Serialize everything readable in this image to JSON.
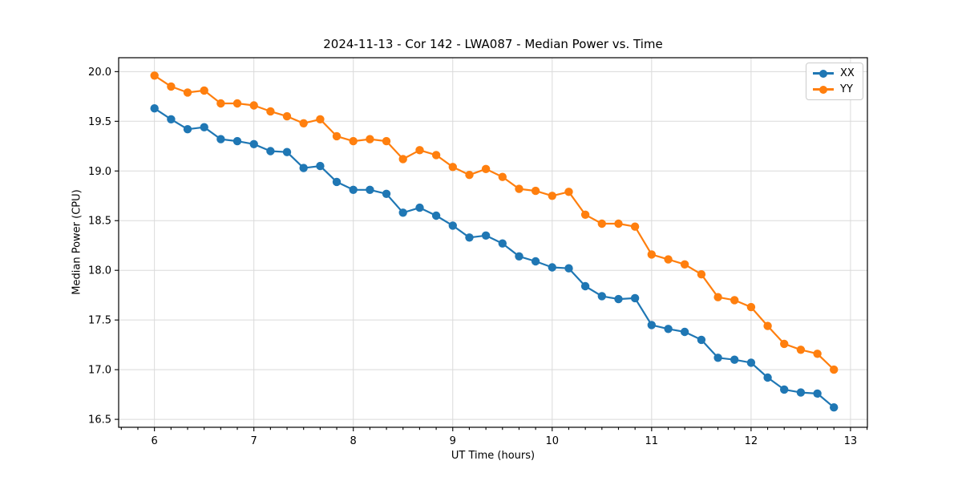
{
  "figure": {
    "title": "2024-11-13 - Cor 142 - LWA087 - Median Power vs. Time",
    "xlabel": "UT Time (hours)",
    "ylabel": "Median Power (CPU)"
  },
  "legend": {
    "entries": [
      {
        "label": "XX",
        "color": "#1f77b4"
      },
      {
        "label": "YY",
        "color": "#ff7f0e"
      }
    ]
  },
  "chart_data": {
    "type": "line",
    "title": "2024-11-13 - Cor 142 - LWA087 - Median Power vs. Time",
    "xlabel": "UT Time (hours)",
    "ylabel": "Median Power (CPU)",
    "x": [
      6.0,
      6.167,
      6.333,
      6.5,
      6.667,
      6.833,
      7.0,
      7.167,
      7.333,
      7.5,
      7.667,
      7.833,
      8.0,
      8.167,
      8.333,
      8.5,
      8.667,
      8.833,
      9.0,
      9.167,
      9.333,
      9.5,
      9.667,
      9.833,
      10.0,
      10.167,
      10.333,
      10.5,
      10.667,
      10.833,
      11.0,
      11.167,
      11.333,
      11.5,
      11.667,
      11.833,
      12.0,
      12.167,
      12.333,
      12.5,
      12.667,
      12.833
    ],
    "series": [
      {
        "name": "XX",
        "color": "#1f77b4",
        "values": [
          19.63,
          19.52,
          19.42,
          19.44,
          19.32,
          19.3,
          19.27,
          19.2,
          19.19,
          19.03,
          19.05,
          18.89,
          18.81,
          18.81,
          18.77,
          18.58,
          18.63,
          18.55,
          18.45,
          18.33,
          18.35,
          18.27,
          18.14,
          18.09,
          18.03,
          18.02,
          17.84,
          17.74,
          17.71,
          17.72,
          17.45,
          17.41,
          17.38,
          17.3,
          17.12,
          17.1,
          17.07,
          16.92,
          16.8,
          16.77,
          16.76,
          16.62
        ]
      },
      {
        "name": "YY",
        "color": "#ff7f0e",
        "values": [
          19.96,
          19.85,
          19.79,
          19.81,
          19.68,
          19.68,
          19.66,
          19.6,
          19.55,
          19.48,
          19.52,
          19.35,
          19.3,
          19.32,
          19.3,
          19.12,
          19.21,
          19.16,
          19.04,
          18.96,
          19.02,
          18.94,
          18.82,
          18.8,
          18.75,
          18.79,
          18.56,
          18.47,
          18.47,
          18.44,
          18.16,
          18.11,
          18.06,
          17.96,
          17.73,
          17.7,
          17.63,
          17.44,
          17.26,
          17.2,
          17.16,
          17.0
        ]
      }
    ],
    "xlim": [
      5.64,
      13.17
    ],
    "ylim": [
      16.42,
      20.14
    ],
    "xticks": [
      6,
      7,
      8,
      9,
      10,
      11,
      12,
      13
    ],
    "xtick_labels": [
      "6",
      "7",
      "8",
      "9",
      "10",
      "11",
      "12",
      "13"
    ],
    "yticks": [
      16.5,
      17.0,
      17.5,
      18.0,
      18.5,
      19.0,
      19.5,
      20.0
    ],
    "ytick_labels": [
      "16.5",
      "17.0",
      "17.5",
      "18.0",
      "18.5",
      "19.0",
      "19.5",
      "20.0"
    ],
    "x_minor_divisions": 6,
    "grid": true,
    "grid_color": "#dadada",
    "legend_position": "upper right",
    "marker": "o",
    "line_width": 2.2,
    "marker_radius": 5.2
  }
}
